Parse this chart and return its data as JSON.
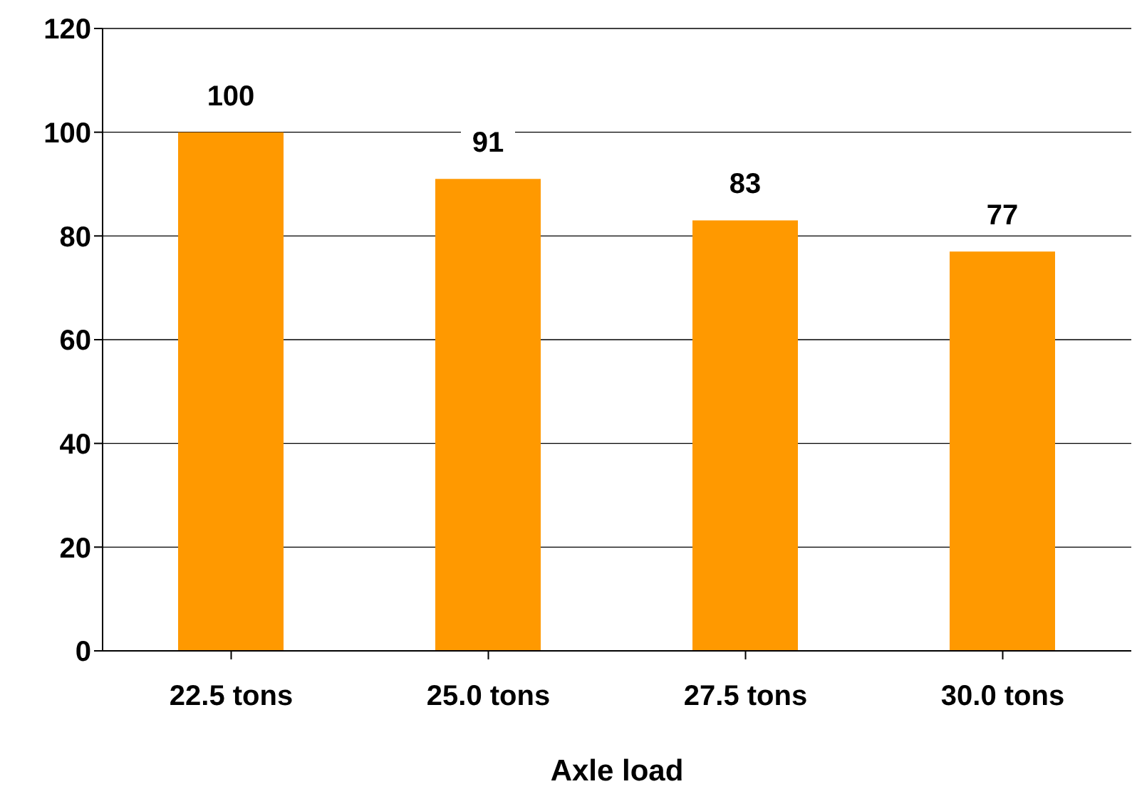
{
  "chart_data": {
    "type": "bar",
    "xlabel": "Axle load",
    "categories": [
      "22.5 tons",
      "25.0 tons",
      "27.5 tons",
      "30.0 tons"
    ],
    "values": [
      100,
      91,
      83,
      77
    ],
    "color": "#ff9900",
    "ylim": [
      0,
      120
    ],
    "yticks": [
      0,
      20,
      40,
      60,
      80,
      100,
      120
    ],
    "grid": "y",
    "data_labels": true,
    "legend": false
  }
}
